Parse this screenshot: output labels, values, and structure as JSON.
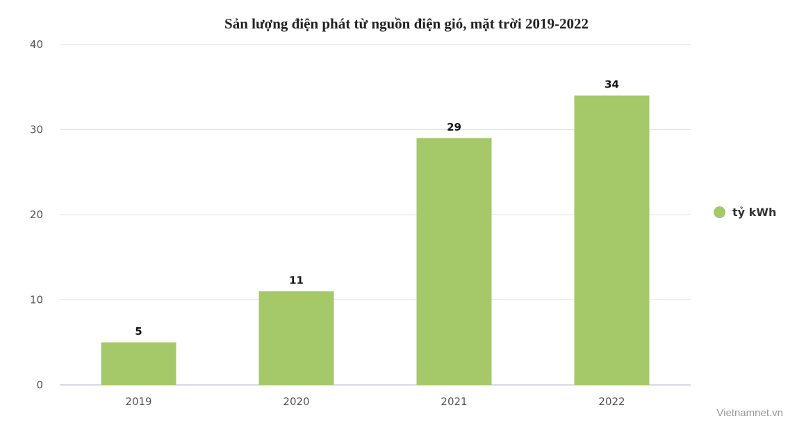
{
  "chart_data": {
    "type": "bar",
    "title": "Sản lượng điện phát từ nguồn điện gió, mặt trời 2019-2022",
    "categories": [
      "2019",
      "2020",
      "2021",
      "2022"
    ],
    "series": [
      {
        "name": "tỷ kWh",
        "values": [
          5,
          11,
          29,
          34
        ]
      }
    ],
    "data_labels": [
      "5",
      "11",
      "29",
      "34"
    ],
    "yticks": [
      "0",
      "10",
      "20",
      "30",
      "40"
    ],
    "ylim": [
      0,
      40
    ],
    "xlabel": "",
    "ylabel": "",
    "grid": true,
    "legend_position": "right",
    "colors": {
      "bar": "#a5c969",
      "grid": "#e3e3e3",
      "axis": "#c8cce0"
    }
  },
  "credit": "Vietnamnet.vn"
}
